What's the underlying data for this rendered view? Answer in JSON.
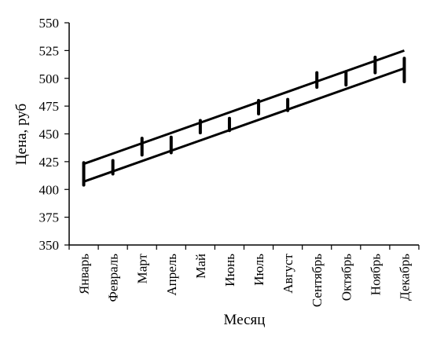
{
  "chart_data": {
    "type": "line",
    "title": "",
    "xlabel": "Месяц",
    "ylabel": "Цена, руб",
    "ylim": [
      350,
      550
    ],
    "yticks": [
      350,
      375,
      400,
      425,
      450,
      475,
      500,
      525,
      550
    ],
    "categories": [
      "Январь",
      "Февраль",
      "Март",
      "Апрель",
      "Май",
      "Июнь",
      "Июль",
      "Август",
      "Сентябрь",
      "Октябрь",
      "Ноябрь",
      "Декабрь"
    ],
    "series": [
      {
        "values": [
          [
            404,
            424
          ],
          [
            414,
            426
          ],
          [
            431,
            446
          ],
          [
            433,
            447
          ],
          [
            451,
            462
          ],
          [
            453,
            464
          ],
          [
            468,
            480
          ],
          [
            471,
            481
          ],
          [
            492,
            505
          ],
          [
            494,
            506
          ],
          [
            505,
            519
          ],
          [
            497,
            518
          ]
        ]
      },
      {
        "values": [
          [
            423,
            525
          ]
        ]
      },
      {
        "values": [
          [
            407,
            509
          ]
        ]
      }
    ],
    "grid": false,
    "legend": "none",
    "colors": {
      "line": "#000000",
      "background": "#ffffff"
    }
  }
}
